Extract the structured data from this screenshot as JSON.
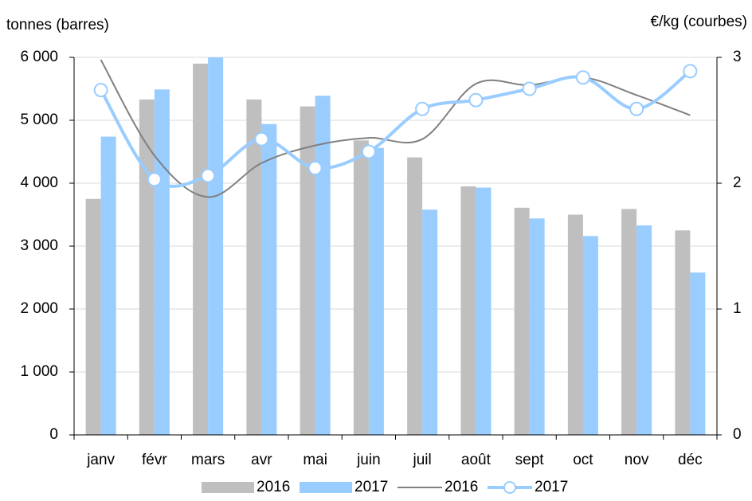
{
  "chart_data": {
    "type": "bar",
    "y_label": "tonnes (barres)",
    "y2_label": "€/kg (courbes)",
    "categories": [
      "janv",
      "févr",
      "mars",
      "avr",
      "mai",
      "juin",
      "juil",
      "août",
      "sept",
      "oct",
      "nov",
      "déc"
    ],
    "series": [
      {
        "name": "2016",
        "type": "bar",
        "color": "#bfbfbf",
        "values": [
          3750,
          5330,
          5900,
          5330,
          5220,
          4680,
          4410,
          3950,
          3610,
          3500,
          3590,
          3250
        ]
      },
      {
        "name": "2017",
        "type": "bar",
        "color": "#99ccff",
        "values": [
          4740,
          5490,
          6000,
          4940,
          5390,
          4560,
          3580,
          3930,
          3440,
          3160,
          3330,
          2580
        ]
      },
      {
        "name": "2016",
        "type": "line",
        "axis": "y2",
        "color": "#808080",
        "values": [
          2.98,
          2.22,
          1.89,
          2.16,
          2.3,
          2.36,
          2.35,
          2.79,
          2.78,
          2.84,
          2.7,
          2.54
        ]
      },
      {
        "name": "2017",
        "type": "line",
        "axis": "y2",
        "color": "#99ccff",
        "marker": true,
        "values": [
          2.74,
          2.03,
          2.06,
          2.35,
          2.12,
          2.25,
          2.59,
          2.66,
          2.75,
          2.84,
          2.59,
          2.89
        ]
      }
    ],
    "ylim": [
      0,
      6000
    ],
    "yticks": [
      0,
      {
        "value": 1000,
        "label": "1 000"
      },
      {
        "value": 2000,
        "label": "2 000"
      },
      {
        "value": 3000,
        "label": "3 000"
      },
      {
        "value": 4000,
        "label": "4 000"
      },
      {
        "value": 5000,
        "label": "5 000"
      },
      {
        "value": 6000,
        "label": "6 000"
      }
    ],
    "y2lim": [
      0,
      3
    ],
    "y2ticks": [
      0,
      1,
      2,
      3
    ],
    "grid": true,
    "legend": "bottom"
  }
}
